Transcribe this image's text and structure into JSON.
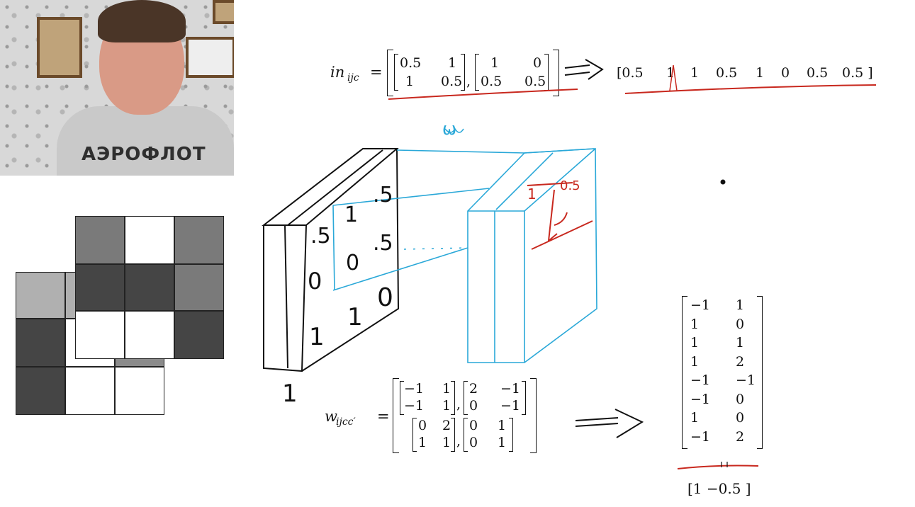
{
  "webcam": {
    "shirt_text": "АЭРОФЛОТ"
  },
  "equation_input": {
    "lhs": "in",
    "lhs_sub": "ijc",
    "eq": "=",
    "m1": [
      [
        "0.5",
        "1"
      ],
      [
        "1",
        "0.5"
      ]
    ],
    "m2": [
      [
        "1",
        "0"
      ],
      [
        "0.5",
        "0.5"
      ]
    ],
    "flat": [
      "[0.5",
      "1",
      "1",
      "0.5",
      "1",
      "0",
      "0.5",
      "0.5 ]"
    ]
  },
  "sketch": {
    "w_label": "ω",
    "front_values": [
      ".5",
      "1",
      ".5",
      "0",
      "0",
      ".5",
      "1",
      "1",
      "0"
    ],
    "depth_label": "1",
    "red_labels": [
      "1",
      "0.5"
    ]
  },
  "equation_weights": {
    "lhs": "w",
    "lhs_sub": "ijcc′",
    "eq": "=",
    "m1": [
      [
        "−1",
        "1"
      ],
      [
        "−1",
        "1"
      ]
    ],
    "m2": [
      [
        "2",
        "−1"
      ],
      [
        "0",
        "−1"
      ]
    ],
    "m3": [
      [
        "0",
        "2"
      ],
      [
        "1",
        "1"
      ]
    ],
    "m4": [
      [
        "0",
        "1"
      ],
      [
        "0",
        "1"
      ]
    ]
  },
  "result_matrix": {
    "rows": [
      [
        "−1",
        "1"
      ],
      [
        "1",
        "0"
      ],
      [
        "1",
        "1"
      ],
      [
        "1",
        "2"
      ],
      [
        "−1",
        "−1"
      ],
      [
        "−1",
        "0"
      ],
      [
        "1",
        "0"
      ],
      [
        "−1",
        "2"
      ]
    ],
    "bottom": "[1   −0.5 ]"
  },
  "colors": {
    "ink": "#111111",
    "blue": "#2aa8d8",
    "red": "#c8281e"
  }
}
